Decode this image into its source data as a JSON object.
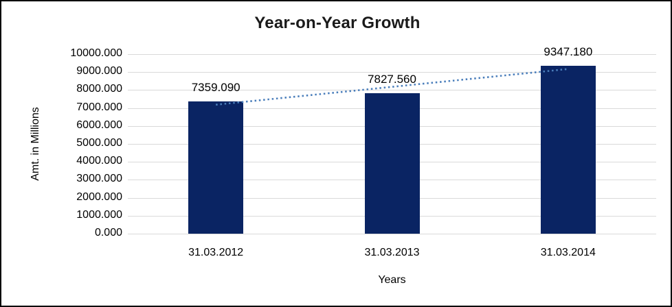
{
  "window": {
    "background": "#ffffff",
    "border_color": "#000000"
  },
  "chart_data": {
    "type": "bar",
    "title": "Year-on-Year Growth",
    "categories": [
      "31.03.2012",
      "31.03.2013",
      "31.03.2014"
    ],
    "values": [
      7359.09,
      7827.56,
      9347.18
    ],
    "data_labels": [
      "7359.090",
      "7827.560",
      "9347.180"
    ],
    "xlabel": "Years",
    "ylabel": "Amt. in Millions",
    "ylim": [
      0,
      10000
    ],
    "ytick_step": 1000,
    "ytick_labels": [
      "10000.000",
      "9000.000",
      "8000.000",
      "7000.000",
      "6000.000",
      "5000.000",
      "4000.000",
      "3000.000",
      "2000.000",
      "1000.000",
      "0.000"
    ],
    "grid": true,
    "legend": "none",
    "trendline": {
      "type": "linear",
      "style": "dotted"
    },
    "colors": {
      "bar": "#0a2463",
      "trendline": "#4a7ebb",
      "gridline": "#d9d9d9",
      "text": "#000000",
      "title_text": "#1a1a1a"
    }
  }
}
